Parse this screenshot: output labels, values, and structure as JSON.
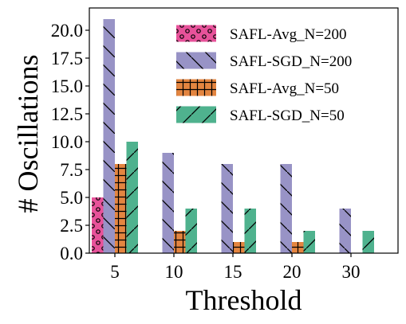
{
  "chart_data": {
    "type": "bar",
    "title": "",
    "xlabel": "Threshold",
    "ylabel": "# Oscillations",
    "categories": [
      "5",
      "10",
      "15",
      "20",
      "30"
    ],
    "ylim": [
      0,
      22
    ],
    "yticks": [
      "0.0",
      "2.5",
      "5.0",
      "7.5",
      "10.0",
      "12.5",
      "15.0",
      "17.5",
      "20.0"
    ],
    "ytick_values": [
      0,
      2.5,
      5,
      7.5,
      10,
      12.5,
      15,
      17.5,
      20
    ],
    "legend_position": "top-right",
    "grid": false,
    "series": [
      {
        "name": "SAFL-Avg_N=200",
        "values": [
          5,
          0,
          0,
          0,
          0
        ],
        "color": "#e7529a",
        "hatch": "circles"
      },
      {
        "name": "SAFL-SGD_N=200",
        "values": [
          21,
          9,
          8,
          8,
          4
        ],
        "color": "#9893c6",
        "hatch": "backslash"
      },
      {
        "name": "SAFL-Avg_N=50",
        "values": [
          8,
          2,
          1,
          1,
          0
        ],
        "color": "#e48540",
        "hatch": "cross"
      },
      {
        "name": "SAFL-SGD_N=50",
        "values": [
          10,
          4,
          4,
          2,
          2
        ],
        "color": "#4fb28e",
        "hatch": "slash"
      }
    ]
  }
}
